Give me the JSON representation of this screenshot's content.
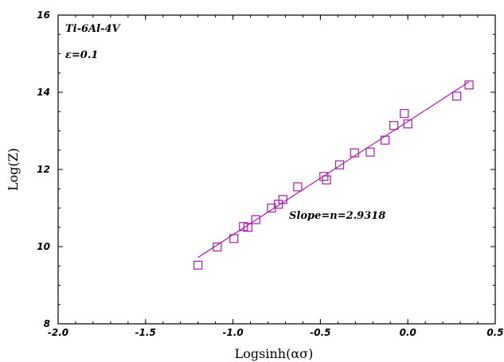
{
  "chart_data": {
    "type": "scatter",
    "title": "",
    "xlabel": "Logsinh(ασ)",
    "ylabel": "Log(Z)",
    "xlim": [
      -2.0,
      0.5
    ],
    "ylim": [
      8,
      16
    ],
    "x_ticks": [
      "-2.0",
      "-1.5",
      "-1.0",
      "-0.5",
      "0.0",
      "0.5"
    ],
    "y_ticks": [
      "8",
      "10",
      "12",
      "14",
      "16"
    ],
    "x_tick_values": [
      -2.0,
      -1.5,
      -1.0,
      -0.5,
      0.0,
      0.5
    ],
    "y_tick_values": [
      8,
      10,
      12,
      14,
      16
    ],
    "grid": false,
    "marker": "open-square",
    "color": "#a21ea8",
    "annotations": {
      "material": "Ti-6Al-4V",
      "strain": "ε=0.1",
      "slope": "Slope=n=2.9318"
    },
    "series": [
      {
        "points": [
          [
            -1.2,
            9.52
          ],
          [
            -1.09,
            9.99
          ],
          [
            -0.995,
            10.21
          ],
          [
            -0.94,
            10.52
          ],
          [
            -0.915,
            10.5
          ],
          [
            -0.87,
            10.7
          ],
          [
            -0.78,
            11.0
          ],
          [
            -0.74,
            11.1
          ],
          [
            -0.715,
            11.22
          ],
          [
            -0.63,
            11.55
          ],
          [
            -0.48,
            11.82
          ],
          [
            -0.465,
            11.73
          ],
          [
            -0.39,
            12.12
          ],
          [
            -0.305,
            12.43
          ],
          [
            -0.215,
            12.45
          ],
          [
            -0.13,
            12.76
          ],
          [
            -0.08,
            13.14
          ],
          [
            -0.02,
            13.45
          ],
          [
            0.0,
            13.18
          ],
          [
            0.28,
            13.9
          ],
          [
            0.35,
            14.19
          ]
        ],
        "fit": {
          "type": "linear",
          "x": [
            -1.2,
            0.35
          ],
          "y": [
            9.72,
            14.27
          ]
        }
      }
    ]
  }
}
